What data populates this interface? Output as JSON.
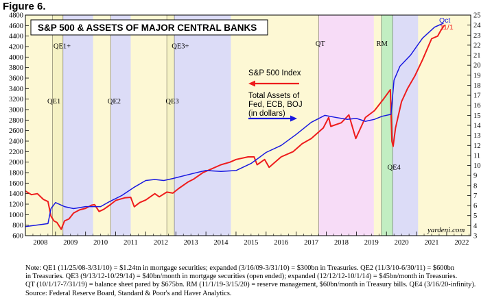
{
  "figure_label": "Figure 6.",
  "chart_data": {
    "type": "line",
    "title": "S&P 500 & ASSETS OF MAJOR CENTRAL BANKS",
    "x_range": [
      2008.0,
      2022.8
    ],
    "x_tick_labels": [
      "2008",
      "2009",
      "2010",
      "2011",
      "2012",
      "2013",
      "2014",
      "2015",
      "2016",
      "2017",
      "2018",
      "2019",
      "2020",
      "2021",
      "2022"
    ],
    "y_left": {
      "min": 600,
      "max": 4800,
      "step": 200,
      "tick_labels": [
        "600",
        "800",
        "1000",
        "1200",
        "1400",
        "1600",
        "1800",
        "2000",
        "2200",
        "2400",
        "2600",
        "2800",
        "3000",
        "3200",
        "3400",
        "3600",
        "3800",
        "4000",
        "4200",
        "4400",
        "4600",
        "4800"
      ]
    },
    "y_right": {
      "min": 3,
      "max": 25,
      "step": 1,
      "tick_labels": [
        "3",
        "4",
        "5",
        "6",
        "7",
        "8",
        "9",
        "10",
        "11",
        "12",
        "13",
        "14",
        "15",
        "16",
        "17",
        "18",
        "19",
        "20",
        "21",
        "22",
        "23",
        "24",
        "25"
      ]
    },
    "shaded_periods": [
      {
        "name": "QE1",
        "start": 2008.9,
        "end": 2009.25,
        "color": "#f5f2c4"
      },
      {
        "name": "QE1+",
        "start": 2009.25,
        "end": 2010.25,
        "color": "#dcdcf7"
      },
      {
        "name": "QE2",
        "start": 2010.84,
        "end": 2011.5,
        "color": "#dcdcf7"
      },
      {
        "name": "QE3",
        "start": 2012.7,
        "end": 2012.95,
        "color": "#f5f2c4"
      },
      {
        "name": "QE3+",
        "start": 2012.95,
        "end": 2014.83,
        "color": "#dcdcf7"
      },
      {
        "name": "QT",
        "start": 2017.75,
        "end": 2019.58,
        "color": "#f7dcf7"
      },
      {
        "name": "RM",
        "start": 2019.83,
        "end": 2020.21,
        "color": "#c2eec2"
      },
      {
        "name": "QE4",
        "start": 2020.21,
        "end": 2021.05,
        "color": "#dcdcf7"
      }
    ],
    "shade_labels": [
      {
        "text": "QE1+",
        "x": 2009.22,
        "y_frac": 0.85
      },
      {
        "text": "QE1",
        "x": 2008.95,
        "y_frac": 0.6
      },
      {
        "text": "QE2",
        "x": 2010.95,
        "y_frac": 0.6
      },
      {
        "text": "QE3+",
        "x": 2013.15,
        "y_frac": 0.85
      },
      {
        "text": "QE3",
        "x": 2012.88,
        "y_frac": 0.6
      },
      {
        "text": "QT",
        "x": 2017.8,
        "y_frac": 0.86
      },
      {
        "text": "RM",
        "x": 2019.85,
        "y_frac": 0.86
      },
      {
        "text": "QE4",
        "x": 2020.25,
        "y_frac": 0.3
      }
    ],
    "series": [
      {
        "name": "S&P 500 Index",
        "axis": "left",
        "color": "#ee1c1c",
        "x": [
          2008.0,
          2008.2,
          2008.4,
          2008.6,
          2008.75,
          2008.85,
          2008.95,
          2009.05,
          2009.15,
          2009.19,
          2009.3,
          2009.45,
          2009.6,
          2009.8,
          2010.0,
          2010.2,
          2010.3,
          2010.45,
          2010.6,
          2010.8,
          2011.0,
          2011.3,
          2011.5,
          2011.62,
          2011.8,
          2012.0,
          2012.3,
          2012.45,
          2012.7,
          2012.9,
          2013.1,
          2013.4,
          2013.6,
          2013.9,
          2014.1,
          2014.5,
          2014.8,
          2015.0,
          2015.4,
          2015.6,
          2015.7,
          2015.95,
          2016.1,
          2016.5,
          2016.9,
          2017.2,
          2017.5,
          2017.9,
          2018.08,
          2018.15,
          2018.5,
          2018.75,
          2018.98,
          2019.3,
          2019.6,
          2019.9,
          2020.13,
          2020.18,
          2020.22,
          2020.3,
          2020.5,
          2020.7,
          2020.95,
          2021.2,
          2021.5,
          2021.7,
          2021.8,
          2021.93
        ],
        "values": [
          1450,
          1380,
          1400,
          1290,
          1250,
          970,
          880,
          850,
          760,
          720,
          880,
          920,
          1030,
          1090,
          1120,
          1180,
          1190,
          1060,
          1100,
          1180,
          1270,
          1320,
          1330,
          1150,
          1230,
          1280,
          1400,
          1340,
          1430,
          1410,
          1500,
          1620,
          1680,
          1800,
          1850,
          1950,
          2000,
          2050,
          2100,
          2100,
          1950,
          2050,
          1900,
          2100,
          2200,
          2350,
          2450,
          2650,
          2850,
          2680,
          2750,
          2900,
          2450,
          2850,
          2980,
          3200,
          3380,
          2400,
          2300,
          2650,
          3150,
          3400,
          3650,
          3950,
          4350,
          4400,
          4500,
          4610
        ]
      },
      {
        "name": "Total Assets of Fed, ECB, BOJ (in dollars)",
        "axis": "right",
        "color": "#1818e0",
        "x": [
          2008.0,
          2008.5,
          2008.75,
          2008.85,
          2009.0,
          2009.3,
          2009.6,
          2010.0,
          2010.5,
          2010.8,
          2011.2,
          2011.6,
          2012.0,
          2012.3,
          2012.6,
          2012.9,
          2013.3,
          2013.7,
          2014.0,
          2014.5,
          2015.0,
          2015.5,
          2016.0,
          2016.5,
          2017.0,
          2017.5,
          2017.95,
          2018.3,
          2018.7,
          2019.0,
          2019.3,
          2019.6,
          2019.85,
          2020.15,
          2020.25,
          2020.45,
          2020.8,
          2021.2,
          2021.6,
          2021.9
        ],
        "values": [
          3.9,
          4.1,
          4.2,
          5.7,
          6.3,
          5.9,
          5.7,
          5.9,
          5.9,
          6.4,
          7.0,
          7.8,
          8.5,
          8.6,
          8.5,
          8.7,
          9.0,
          9.3,
          9.5,
          9.4,
          9.5,
          10.2,
          11.3,
          12.0,
          13.1,
          14.3,
          15.0,
          14.8,
          14.6,
          14.7,
          14.4,
          14.6,
          14.9,
          15.1,
          18.5,
          19.9,
          21.0,
          22.7,
          23.8,
          24.2
        ]
      }
    ],
    "annotations": {
      "sp_label": "S&P 500 Index",
      "assets_line1": "Total Assets of",
      "assets_line2": "Fed, ECB, BOJ",
      "assets_line3": "(in dollars)",
      "oct": "Oct",
      "nov": "11/1",
      "source_brand": "yardeni.com"
    }
  },
  "note_lines": [
    "Note: QE1 (11/25/08-3/31/10) = $1.24tn in mortgage securities; expanded (3/16/09-3/31/10) = $300bn in Treasuries. QE2 (11/3/10-6/30/11) = $600bn",
    "in Treasuries. QE3 (9/13/12-10/29/14) = $40bn/month in mortgage securities (open ended); expanded (12/12/12-10/1/14) = $45bn/month in Treasuries.",
    "QT (10/1/17-7/31/19) = balance sheet pared by $675bn. RM (11/1/19-3/15/20) = reserve management, $60bn/month in Treasury bills. QE4 (3/16/20-infinity).",
    "Source: Federal Reserve Board, Standard & Poor's and Haver Analytics."
  ]
}
